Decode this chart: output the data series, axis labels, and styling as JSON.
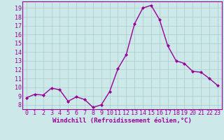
{
  "x": [
    0,
    1,
    2,
    3,
    4,
    5,
    6,
    7,
    8,
    9,
    10,
    11,
    12,
    13,
    14,
    15,
    16,
    17,
    18,
    19,
    20,
    21,
    22,
    23
  ],
  "y": [
    8.8,
    9.2,
    9.1,
    9.9,
    9.7,
    8.4,
    8.9,
    8.6,
    7.7,
    8.0,
    9.5,
    12.1,
    13.7,
    17.2,
    19.0,
    19.3,
    17.7,
    14.7,
    13.0,
    12.7,
    11.8,
    11.7,
    11.0,
    10.2
  ],
  "line_color": "#990099",
  "bg_color": "#cce8e8",
  "grid_color": "#aacccc",
  "xlabel": "Windchill (Refroidissement éolien,°C)",
  "ylabel_ticks": [
    8,
    9,
    10,
    11,
    12,
    13,
    14,
    15,
    16,
    17,
    18,
    19
  ],
  "xlim": [
    -0.5,
    23.5
  ],
  "ylim": [
    7.5,
    19.75
  ],
  "xticks": [
    0,
    1,
    2,
    3,
    4,
    5,
    6,
    7,
    8,
    9,
    10,
    11,
    12,
    13,
    14,
    15,
    16,
    17,
    18,
    19,
    20,
    21,
    22,
    23
  ],
  "font_color": "#990099",
  "marker": "D",
  "markersize": 2.0,
  "linewidth": 1.0,
  "tick_fontsize": 6.0,
  "xlabel_fontsize": 6.5
}
